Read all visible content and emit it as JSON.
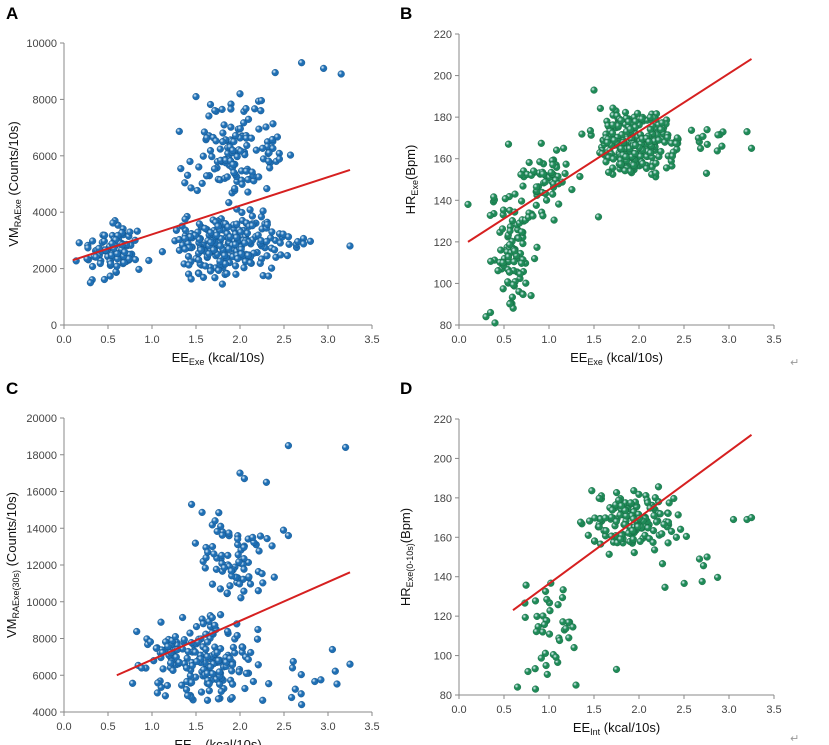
{
  "colors": {
    "blue_point": "#1f6fb4",
    "green_point": "#1f8a57",
    "fit_line": "#d62020",
    "axis": "#888888"
  },
  "chart_data": [
    {
      "panel": "A",
      "type": "scatter",
      "xlabel": {
        "main": "EE",
        "sub": "Exe",
        "rest": " (kcal/10s)"
      },
      "ylabel": {
        "main": "VM",
        "sub": "RAExe",
        "rest": " (Counts/10s)"
      },
      "xlim": [
        0,
        3.5
      ],
      "ylim": [
        0,
        10000
      ],
      "xticks": [
        0.0,
        0.5,
        1.0,
        1.5,
        2.0,
        2.5,
        3.0,
        3.5
      ],
      "yticks": [
        0,
        2000,
        4000,
        6000,
        8000,
        10000
      ],
      "xtick_labels": [
        "0.0",
        "0.5",
        "1.0",
        "1.5",
        "2.0",
        "2.5",
        "3.0",
        "3.5"
      ],
      "ytick_labels": [
        "0",
        "2000",
        "4000",
        "6000",
        "8000",
        "10000"
      ],
      "color": "blue",
      "fit_line": {
        "x": [
          0.1,
          3.25
        ],
        "y": [
          2300,
          5500
        ]
      },
      "clusters": [
        {
          "n": 95,
          "x": [
            0.1,
            1.0
          ],
          "y": [
            1500,
            3800
          ],
          "seed": 11
        },
        {
          "n": 230,
          "x": [
            1.0,
            2.7
          ],
          "y": [
            1500,
            4200
          ],
          "seed": 12
        },
        {
          "n": 130,
          "x": [
            1.2,
            2.7
          ],
          "y": [
            4300,
            8200
          ],
          "seed": 13
        },
        {
          "n": 10,
          "x": [
            2.1,
            3.25
          ],
          "y": [
            2500,
            3300
          ],
          "seed": 14
        }
      ],
      "points": [
        [
          2.7,
          9300
        ],
        [
          2.95,
          9100
        ],
        [
          3.15,
          8900
        ],
        [
          2.4,
          8950
        ],
        [
          1.5,
          8100
        ],
        [
          2.0,
          8200
        ],
        [
          3.25,
          2800
        ],
        [
          0.3,
          1500
        ],
        [
          1.8,
          1450
        ]
      ]
    },
    {
      "panel": "B",
      "type": "scatter",
      "xlabel": {
        "main": "EE",
        "sub": "Exe",
        "rest": " (kcal/10s)"
      },
      "ylabel": {
        "main": "HR",
        "sub": "Exe",
        "rest": "(Bpm)"
      },
      "xlim": [
        0,
        3.5
      ],
      "ylim": [
        80,
        220
      ],
      "xticks": [
        0.0,
        0.5,
        1.0,
        1.5,
        2.0,
        2.5,
        3.0,
        3.5
      ],
      "yticks": [
        80,
        100,
        120,
        140,
        160,
        180,
        200,
        220
      ],
      "xtick_labels": [
        "0.0",
        "0.5",
        "1.0",
        "1.5",
        "2.0",
        "2.5",
        "3.0",
        "3.5"
      ],
      "ytick_labels": [
        "80",
        "100",
        "120",
        "140",
        "160",
        "180",
        "200",
        "220"
      ],
      "color": "green",
      "fit_line": {
        "x": [
          0.1,
          3.25
        ],
        "y": [
          120,
          208
        ]
      },
      "clusters": [
        {
          "n": 90,
          "x": [
            0.25,
            0.95
          ],
          "y": [
            84,
            150
          ],
          "seed": 21
        },
        {
          "n": 60,
          "x": [
            0.6,
            1.4
          ],
          "y": [
            130,
            168
          ],
          "seed": 22
        },
        {
          "n": 260,
          "x": [
            1.3,
            2.6
          ],
          "y": [
            150,
            185
          ],
          "seed": 23
        },
        {
          "n": 12,
          "x": [
            2.4,
            3.25
          ],
          "y": [
            162,
            175
          ],
          "seed": 24
        }
      ],
      "points": [
        [
          0.1,
          138
        ],
        [
          1.5,
          193
        ],
        [
          0.4,
          81
        ],
        [
          0.3,
          84
        ],
        [
          0.35,
          86
        ],
        [
          3.2,
          173
        ],
        [
          3.25,
          165
        ],
        [
          1.55,
          132
        ],
        [
          2.75,
          153
        ],
        [
          0.55,
          167
        ]
      ]
    },
    {
      "panel": "C",
      "type": "scatter",
      "xlabel": {
        "main": "EE",
        "sub": "Int",
        "rest": " (kcal/10s)"
      },
      "ylabel": {
        "main": "VM",
        "sub": "RAExe(30s)",
        "rest": " (Counts/10s)"
      },
      "xlim": [
        0,
        3.5
      ],
      "ylim": [
        4000,
        20000
      ],
      "xticks": [
        0.0,
        0.5,
        1.0,
        1.5,
        2.0,
        2.5,
        3.0,
        3.5
      ],
      "yticks": [
        4000,
        6000,
        8000,
        10000,
        12000,
        14000,
        16000,
        18000,
        20000
      ],
      "xtick_labels": [
        "0.0",
        "0.5",
        "1.0",
        "1.5",
        "2.0",
        "2.5",
        "3.0",
        "3.5"
      ],
      "ytick_labels": [
        "4000",
        "6000",
        "8000",
        "10000",
        "12000",
        "14000",
        "16000",
        "18000",
        "20000"
      ],
      "color": "blue",
      "fit_line": {
        "x": [
          0.6,
          3.25
        ],
        "y": [
          6000,
          11600
        ]
      },
      "clusters": [
        {
          "n": 190,
          "x": [
            0.6,
            2.5
          ],
          "y": [
            4300,
            9500
          ],
          "seed": 31
        },
        {
          "n": 75,
          "x": [
            1.3,
            2.6
          ],
          "y": [
            9500,
            15000
          ],
          "seed": 32
        },
        {
          "n": 10,
          "x": [
            2.3,
            3.25
          ],
          "y": [
            4500,
            7500
          ],
          "seed": 33
        }
      ],
      "points": [
        [
          2.55,
          18500
        ],
        [
          3.2,
          18400
        ],
        [
          2.0,
          17000
        ],
        [
          2.05,
          16700
        ],
        [
          2.3,
          16500
        ],
        [
          1.45,
          15300
        ],
        [
          2.7,
          4400
        ],
        [
          3.05,
          7400
        ],
        [
          3.25,
          6600
        ],
        [
          2.55,
          13600
        ]
      ]
    },
    {
      "panel": "D",
      "type": "scatter",
      "xlabel": {
        "main": "EE",
        "sub": "Int",
        "rest": "  (kcal/10s)"
      },
      "ylabel": {
        "main": "HR",
        "sub": "Exe(0-10s)",
        "rest": "(Bpm)"
      },
      "xlim": [
        0,
        3.5
      ],
      "ylim": [
        80,
        220
      ],
      "xticks": [
        0.0,
        0.5,
        1.0,
        1.5,
        2.0,
        2.5,
        3.0,
        3.5
      ],
      "yticks": [
        80,
        100,
        120,
        140,
        160,
        180,
        200,
        220
      ],
      "xtick_labels": [
        "0.0",
        "0.5",
        "1.0",
        "1.5",
        "2.0",
        "2.5",
        "3.0",
        "3.5"
      ],
      "ytick_labels": [
        "80",
        "100",
        "120",
        "140",
        "160",
        "180",
        "200",
        "220"
      ],
      "color": "green",
      "fit_line": {
        "x": [
          0.6,
          3.25
        ],
        "y": [
          123,
          212
        ]
      },
      "clusters": [
        {
          "n": 40,
          "x": [
            0.6,
            1.4
          ],
          "y": [
            83,
            150
          ],
          "seed": 41
        },
        {
          "n": 160,
          "x": [
            1.2,
            2.6
          ],
          "y": [
            150,
            186
          ],
          "seed": 42
        },
        {
          "n": 10,
          "x": [
            2.0,
            3.25
          ],
          "y": [
            128,
            172
          ],
          "seed": 43
        }
      ],
      "points": [
        [
          3.05,
          169
        ],
        [
          3.2,
          169
        ],
        [
          3.25,
          170
        ],
        [
          1.75,
          93
        ],
        [
          0.85,
          83
        ],
        [
          0.65,
          84
        ],
        [
          1.3,
          85
        ]
      ]
    }
  ],
  "return_glyph": "↵"
}
